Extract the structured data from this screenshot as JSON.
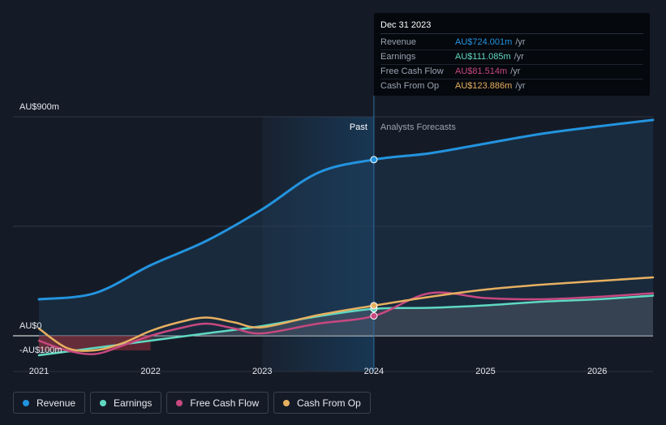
{
  "chart_data": {
    "type": "line",
    "x_ticks": [
      2021,
      2022,
      2023,
      2024,
      2025,
      2026
    ],
    "x_tick_labels": [
      "2021",
      "2022",
      "2023",
      "2024",
      "2025",
      "2026"
    ],
    "xlim": [
      2021,
      2026.5
    ],
    "ylim": [
      -100,
      900
    ],
    "y_tick_labels": [
      {
        "value": 900,
        "label": "AU$900m"
      },
      {
        "value": 0,
        "label": "AU$0"
      },
      {
        "value": -100,
        "label": "-AU$100m"
      }
    ],
    "divider_x": 2024,
    "past_start": 2023,
    "past_label": "Past",
    "forecast_label": "Analysts Forecasts",
    "series": [
      {
        "key": "revenue",
        "name": "Revenue",
        "color": "#2394df",
        "x": [
          2021,
          2021.5,
          2022,
          2022.5,
          2023,
          2023.5,
          2024,
          2024.5,
          2025,
          2025.5,
          2026,
          2026.5
        ],
        "values": [
          150,
          175,
          290,
          390,
          520,
          670,
          724,
          750,
          790,
          830,
          860,
          887
        ]
      },
      {
        "key": "earnings",
        "name": "Earnings",
        "color": "#5fd8c2",
        "x": [
          2021,
          2021.5,
          2022,
          2022.5,
          2023,
          2023.5,
          2024,
          2024.5,
          2025,
          2025.5,
          2026,
          2026.5
        ],
        "values": [
          -80,
          -50,
          -20,
          10,
          40,
          80,
          111,
          115,
          125,
          140,
          150,
          165
        ]
      },
      {
        "key": "fcf",
        "name": "Free Cash Flow",
        "color": "#c8487f",
        "x": [
          2021,
          2021.25,
          2021.5,
          2021.75,
          2022,
          2022.25,
          2022.5,
          2022.75,
          2023,
          2023.5,
          2024,
          2024.5,
          2025,
          2025.5,
          2026,
          2026.5
        ],
        "values": [
          -20,
          -60,
          -75,
          -40,
          0,
          30,
          50,
          30,
          10,
          50,
          81.5,
          175,
          155,
          150,
          160,
          175
        ]
      },
      {
        "key": "cfo",
        "name": "Cash From Op",
        "color": "#e7b060",
        "x": [
          2021,
          2021.25,
          2021.5,
          2021.75,
          2022,
          2022.25,
          2022.5,
          2022.75,
          2023,
          2023.5,
          2024,
          2024.5,
          2025,
          2025.5,
          2026,
          2026.5
        ],
        "values": [
          30,
          -50,
          -60,
          -30,
          20,
          55,
          75,
          55,
          35,
          85,
          123.9,
          160,
          190,
          210,
          225,
          240
        ]
      }
    ]
  },
  "tooltip": {
    "date": "Dec 31 2023",
    "rows": [
      {
        "label": "Revenue",
        "value": "AU$724.001m",
        "unit": "/yr",
        "color": "#2394df"
      },
      {
        "label": "Earnings",
        "value": "AU$111.085m",
        "unit": "/yr",
        "color": "#5fd8c2"
      },
      {
        "label": "Free Cash Flow",
        "value": "AU$81.514m",
        "unit": "/yr",
        "color": "#c8487f"
      },
      {
        "label": "Cash From Op",
        "value": "AU$123.886m",
        "unit": "/yr",
        "color": "#e7b060"
      }
    ]
  },
  "legend": [
    {
      "label": "Revenue",
      "color": "#2394df"
    },
    {
      "label": "Earnings",
      "color": "#5fd8c2"
    },
    {
      "label": "Free Cash Flow",
      "color": "#c8487f"
    },
    {
      "label": "Cash From Op",
      "color": "#e7b060"
    }
  ]
}
